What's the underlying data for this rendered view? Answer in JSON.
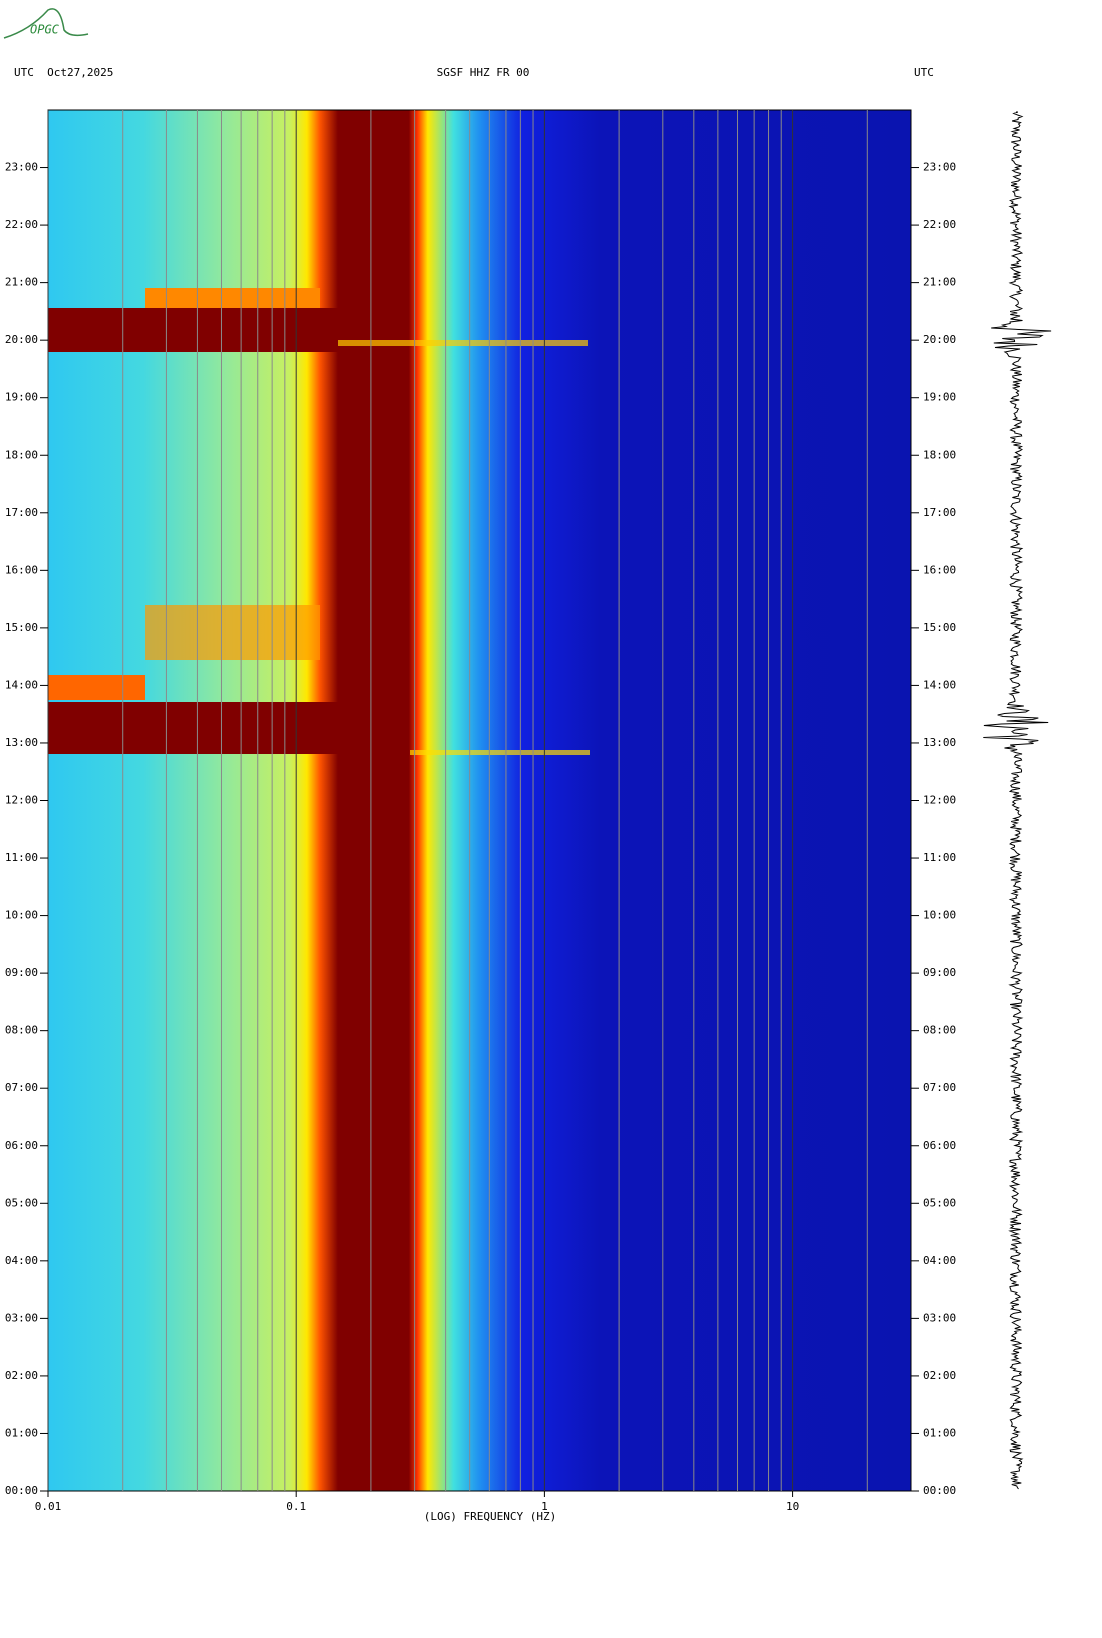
{
  "logo": "OPGC",
  "chart_data": {
    "type": "spectrogram",
    "title": "SGSF HHZ FR 00",
    "left_header": "UTC  Oct27,2025",
    "right_header": "UTC",
    "xlabel": "(LOG) FREQUENCY (HZ)",
    "xscale": "log",
    "xlim": [
      0.01,
      30
    ],
    "xticks": [
      {
        "value": 0.01,
        "label": "0.01"
      },
      {
        "value": 0.1,
        "label": "0.1"
      },
      1,
      10
    ],
    "xminorticks": [
      0.02,
      0.03,
      0.04,
      0.05,
      0.06,
      0.07,
      0.08,
      0.09,
      0.2,
      0.3,
      0.4,
      0.5,
      0.6,
      0.7,
      0.8,
      0.9,
      2,
      3,
      4,
      5,
      6,
      7,
      8,
      9,
      20
    ],
    "ylim": [
      0,
      24
    ],
    "yticks": [
      {
        "value": 0,
        "label": "00:00"
      },
      {
        "value": 1,
        "label": "01:00"
      },
      {
        "value": 2,
        "label": "02:00"
      },
      {
        "value": 3,
        "label": "03:00"
      },
      {
        "value": 4,
        "label": "04:00"
      },
      {
        "value": 5,
        "label": "05:00"
      },
      {
        "value": 6,
        "label": "06:00"
      },
      {
        "value": 7,
        "label": "07:00"
      },
      {
        "value": 8,
        "label": "08:00"
      },
      {
        "value": 9,
        "label": "09:00"
      },
      {
        "value": 10,
        "label": "10:00"
      },
      {
        "value": 11,
        "label": "11:00"
      },
      {
        "value": 12,
        "label": "12:00"
      },
      {
        "value": 13,
        "label": "13:00"
      },
      {
        "value": 14,
        "label": "14:00"
      },
      {
        "value": 15,
        "label": "15:00"
      },
      {
        "value": 16,
        "label": "16:00"
      },
      {
        "value": 17,
        "label": "17:00"
      },
      {
        "value": 18,
        "label": "18:00"
      },
      {
        "value": 19,
        "label": "19:00"
      },
      {
        "value": 20,
        "label": "20:00"
      },
      {
        "value": 21,
        "label": "21:00"
      },
      {
        "value": 22,
        "label": "22:00"
      },
      {
        "value": 23,
        "label": "23:00"
      }
    ]
  }
}
